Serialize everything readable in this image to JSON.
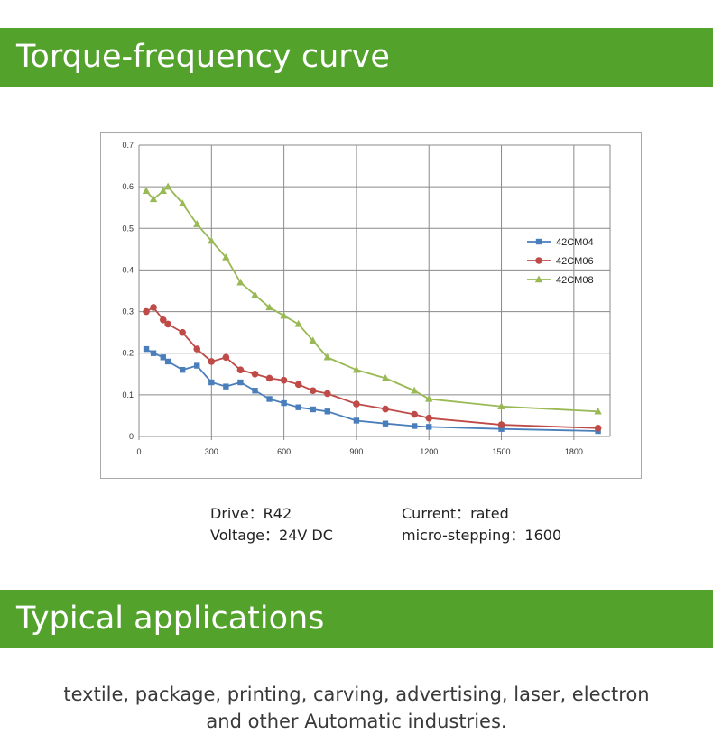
{
  "sections": {
    "curve_title": "Torque-frequency curve",
    "applications_title": "Typical applications"
  },
  "specs": {
    "drive": "Drive：R42",
    "voltage": "Voltage：24V DC",
    "current": "Current：rated",
    "micro_stepping": "micro-stepping：1600"
  },
  "applications": {
    "line1": "textile, package, printing, carving, advertising, laser, electron",
    "line2": "and other Automatic industries."
  },
  "chart_data": {
    "type": "line",
    "title": "",
    "xlabel": "",
    "ylabel": "",
    "xlim": [
      0,
      1950
    ],
    "ylim": [
      0,
      0.7
    ],
    "x_ticks": [
      "0",
      "300",
      "600",
      "900",
      "1200",
      "1500",
      "1800"
    ],
    "y_ticks": [
      "0",
      "0.1",
      "0.2",
      "0.3",
      "0.4",
      "0.5",
      "0.6",
      "0.7"
    ],
    "grid": true,
    "legend_position": "right",
    "series": [
      {
        "name": "42CM04",
        "color": "#4a7ebb",
        "marker": "square",
        "x": [
          30,
          60,
          100,
          120,
          180,
          240,
          300,
          360,
          420,
          480,
          540,
          600,
          660,
          720,
          780,
          900,
          1020,
          1140,
          1200,
          1500,
          1900
        ],
        "y": [
          0.21,
          0.2,
          0.19,
          0.18,
          0.16,
          0.17,
          0.13,
          0.12,
          0.13,
          0.11,
          0.09,
          0.08,
          0.07,
          0.065,
          0.06,
          0.038,
          0.031,
          0.025,
          0.023,
          0.018,
          0.013
        ]
      },
      {
        "name": "42CM06",
        "color": "#be4b48",
        "marker": "circle",
        "x": [
          30,
          60,
          100,
          120,
          180,
          240,
          300,
          360,
          420,
          480,
          540,
          600,
          660,
          720,
          780,
          900,
          1020,
          1140,
          1200,
          1500,
          1900
        ],
        "y": [
          0.3,
          0.31,
          0.28,
          0.27,
          0.25,
          0.21,
          0.18,
          0.19,
          0.16,
          0.15,
          0.14,
          0.135,
          0.125,
          0.11,
          0.103,
          0.078,
          0.066,
          0.053,
          0.044,
          0.028,
          0.02
        ]
      },
      {
        "name": "42CM08",
        "color": "#98b954",
        "marker": "triangle",
        "x": [
          30,
          60,
          100,
          120,
          180,
          240,
          300,
          360,
          420,
          480,
          540,
          600,
          660,
          720,
          780,
          900,
          1020,
          1140,
          1200,
          1500,
          1900
        ],
        "y": [
          0.59,
          0.57,
          0.59,
          0.6,
          0.56,
          0.51,
          0.47,
          0.43,
          0.37,
          0.34,
          0.31,
          0.29,
          0.27,
          0.23,
          0.19,
          0.16,
          0.14,
          0.11,
          0.09,
          0.072,
          0.06
        ]
      }
    ]
  }
}
